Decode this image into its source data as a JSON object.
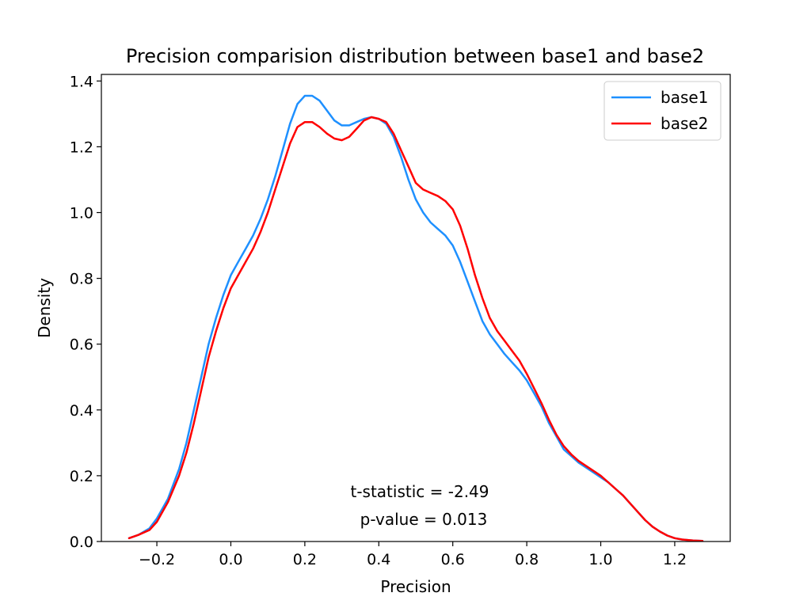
{
  "chart_data": {
    "type": "line",
    "title": "Precision comparision distribution between base1 and base2",
    "xlabel": "Precision",
    "ylabel": "Density",
    "xlim": [
      -0.35,
      1.35
    ],
    "ylim": [
      0,
      1.42
    ],
    "xticks": [
      -0.2,
      0.0,
      0.2,
      0.4,
      0.6,
      0.8,
      1.0,
      1.2
    ],
    "xtick_labels": [
      "−0.2",
      "0.0",
      "0.2",
      "0.4",
      "0.6",
      "0.8",
      "1.0",
      "1.2"
    ],
    "yticks": [
      0.0,
      0.2,
      0.4,
      0.6,
      0.8,
      1.0,
      1.2,
      1.4
    ],
    "ytick_labels": [
      "0.0",
      "0.2",
      "0.4",
      "0.6",
      "0.8",
      "1.0",
      "1.2",
      "1.4"
    ],
    "grid": false,
    "legend": "top-right",
    "annotations": [
      "t-statistic = -2.49",
      "p-value = 0.013"
    ],
    "series": [
      {
        "name": "base1",
        "color": "#1e90ff",
        "points": [
          [
            -0.275,
            0.01
          ],
          [
            -0.25,
            0.02
          ],
          [
            -0.22,
            0.04
          ],
          [
            -0.2,
            0.07
          ],
          [
            -0.17,
            0.13
          ],
          [
            -0.14,
            0.22
          ],
          [
            -0.12,
            0.3
          ],
          [
            -0.1,
            0.4
          ],
          [
            -0.08,
            0.5
          ],
          [
            -0.06,
            0.6
          ],
          [
            -0.04,
            0.68
          ],
          [
            -0.02,
            0.75
          ],
          [
            0.0,
            0.81
          ],
          [
            0.02,
            0.85
          ],
          [
            0.04,
            0.89
          ],
          [
            0.06,
            0.93
          ],
          [
            0.08,
            0.98
          ],
          [
            0.1,
            1.04
          ],
          [
            0.12,
            1.11
          ],
          [
            0.14,
            1.19
          ],
          [
            0.16,
            1.27
          ],
          [
            0.18,
            1.33
          ],
          [
            0.2,
            1.355
          ],
          [
            0.22,
            1.355
          ],
          [
            0.24,
            1.34
          ],
          [
            0.26,
            1.31
          ],
          [
            0.28,
            1.28
          ],
          [
            0.3,
            1.265
          ],
          [
            0.32,
            1.265
          ],
          [
            0.34,
            1.275
          ],
          [
            0.36,
            1.285
          ],
          [
            0.38,
            1.29
          ],
          [
            0.4,
            1.285
          ],
          [
            0.42,
            1.27
          ],
          [
            0.44,
            1.23
          ],
          [
            0.46,
            1.17
          ],
          [
            0.48,
            1.1
          ],
          [
            0.5,
            1.04
          ],
          [
            0.52,
            1.0
          ],
          [
            0.54,
            0.97
          ],
          [
            0.56,
            0.95
          ],
          [
            0.58,
            0.93
          ],
          [
            0.6,
            0.9
          ],
          [
            0.62,
            0.85
          ],
          [
            0.64,
            0.79
          ],
          [
            0.66,
            0.73
          ],
          [
            0.68,
            0.67
          ],
          [
            0.7,
            0.63
          ],
          [
            0.72,
            0.6
          ],
          [
            0.74,
            0.57
          ],
          [
            0.76,
            0.545
          ],
          [
            0.78,
            0.52
          ],
          [
            0.8,
            0.49
          ],
          [
            0.82,
            0.45
          ],
          [
            0.84,
            0.41
          ],
          [
            0.86,
            0.36
          ],
          [
            0.88,
            0.32
          ],
          [
            0.9,
            0.28
          ],
          [
            0.92,
            0.26
          ],
          [
            0.94,
            0.24
          ],
          [
            0.96,
            0.225
          ],
          [
            0.98,
            0.21
          ],
          [
            1.0,
            0.195
          ],
          [
            1.02,
            0.18
          ],
          [
            1.04,
            0.16
          ],
          [
            1.06,
            0.14
          ],
          [
            1.08,
            0.115
          ],
          [
            1.1,
            0.09
          ],
          [
            1.12,
            0.065
          ],
          [
            1.14,
            0.045
          ],
          [
            1.16,
            0.03
          ],
          [
            1.18,
            0.018
          ],
          [
            1.2,
            0.01
          ],
          [
            1.22,
            0.006
          ],
          [
            1.25,
            0.003
          ],
          [
            1.275,
            0.002
          ]
        ]
      },
      {
        "name": "base2",
        "color": "#ff0000",
        "points": [
          [
            -0.275,
            0.01
          ],
          [
            -0.25,
            0.02
          ],
          [
            -0.22,
            0.035
          ],
          [
            -0.2,
            0.06
          ],
          [
            -0.17,
            0.12
          ],
          [
            -0.14,
            0.2
          ],
          [
            -0.12,
            0.27
          ],
          [
            -0.1,
            0.36
          ],
          [
            -0.08,
            0.46
          ],
          [
            -0.06,
            0.56
          ],
          [
            -0.04,
            0.64
          ],
          [
            -0.02,
            0.71
          ],
          [
            0.0,
            0.77
          ],
          [
            0.02,
            0.81
          ],
          [
            0.04,
            0.85
          ],
          [
            0.06,
            0.89
          ],
          [
            0.08,
            0.94
          ],
          [
            0.1,
            1.0
          ],
          [
            0.12,
            1.07
          ],
          [
            0.14,
            1.14
          ],
          [
            0.16,
            1.21
          ],
          [
            0.18,
            1.26
          ],
          [
            0.2,
            1.275
          ],
          [
            0.22,
            1.275
          ],
          [
            0.24,
            1.26
          ],
          [
            0.26,
            1.24
          ],
          [
            0.28,
            1.225
          ],
          [
            0.3,
            1.22
          ],
          [
            0.32,
            1.23
          ],
          [
            0.34,
            1.255
          ],
          [
            0.36,
            1.28
          ],
          [
            0.38,
            1.29
          ],
          [
            0.4,
            1.285
          ],
          [
            0.42,
            1.275
          ],
          [
            0.44,
            1.24
          ],
          [
            0.46,
            1.19
          ],
          [
            0.48,
            1.14
          ],
          [
            0.5,
            1.09
          ],
          [
            0.52,
            1.07
          ],
          [
            0.54,
            1.06
          ],
          [
            0.56,
            1.05
          ],
          [
            0.58,
            1.035
          ],
          [
            0.6,
            1.01
          ],
          [
            0.62,
            0.96
          ],
          [
            0.64,
            0.89
          ],
          [
            0.66,
            0.81
          ],
          [
            0.68,
            0.74
          ],
          [
            0.7,
            0.68
          ],
          [
            0.72,
            0.64
          ],
          [
            0.74,
            0.61
          ],
          [
            0.76,
            0.58
          ],
          [
            0.78,
            0.55
          ],
          [
            0.8,
            0.51
          ],
          [
            0.82,
            0.465
          ],
          [
            0.84,
            0.42
          ],
          [
            0.86,
            0.37
          ],
          [
            0.88,
            0.325
          ],
          [
            0.9,
            0.29
          ],
          [
            0.92,
            0.265
          ],
          [
            0.94,
            0.245
          ],
          [
            0.96,
            0.23
          ],
          [
            0.98,
            0.215
          ],
          [
            1.0,
            0.2
          ],
          [
            1.02,
            0.18
          ],
          [
            1.04,
            0.16
          ],
          [
            1.06,
            0.14
          ],
          [
            1.08,
            0.115
          ],
          [
            1.1,
            0.09
          ],
          [
            1.12,
            0.065
          ],
          [
            1.14,
            0.045
          ],
          [
            1.16,
            0.03
          ],
          [
            1.18,
            0.018
          ],
          [
            1.2,
            0.01
          ],
          [
            1.22,
            0.006
          ],
          [
            1.25,
            0.003
          ],
          [
            1.275,
            0.002
          ]
        ]
      }
    ]
  }
}
